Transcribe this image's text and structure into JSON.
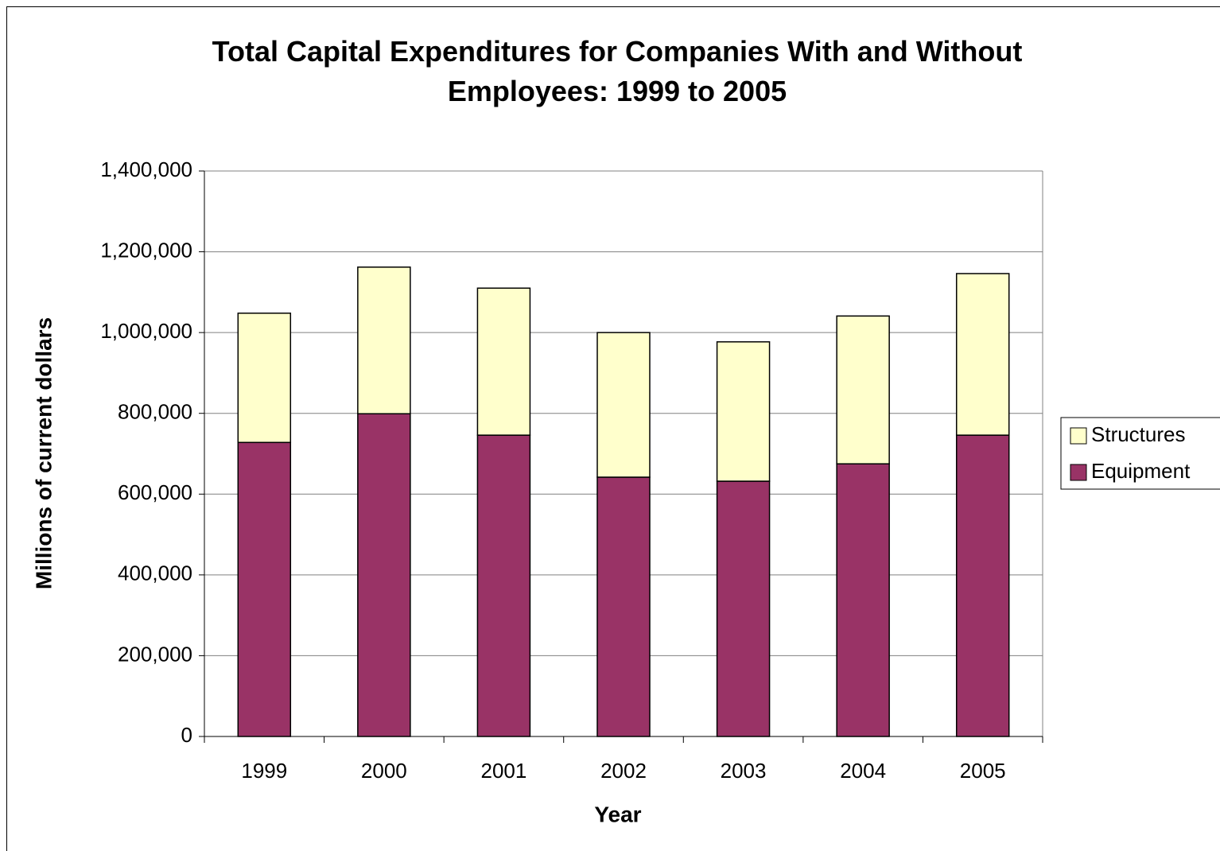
{
  "chart_data": {
    "type": "stacked_bar",
    "title": "Total Capital Expenditures for Companies With and Without Employees: 1999 to 2005",
    "x_label": "Year",
    "y_label": "Millions of current dollars",
    "categories": [
      "1999",
      "2000",
      "2001",
      "2002",
      "2003",
      "2004",
      "2005"
    ],
    "series": [
      {
        "name": "Equipment",
        "color": "#993366",
        "values": [
          728000,
          799000,
          746000,
          642000,
          632000,
          675000,
          746000
        ]
      },
      {
        "name": "Structures",
        "color": "#ffffcc",
        "values": [
          320000,
          363000,
          364000,
          358000,
          345000,
          366000,
          400000
        ]
      }
    ],
    "ylim": [
      0,
      1400000
    ],
    "yticks": [
      0,
      {
        "value": 200000,
        "label": "200,000"
      },
      {
        "value": 400000,
        "label": "400,000"
      },
      {
        "value": 600000,
        "label": "600,000"
      },
      {
        "value": 800000,
        "label": "800,000"
      },
      {
        "value": 1000000,
        "label": "1,000,000"
      },
      {
        "value": 1200000,
        "label": "1,200,000"
      },
      {
        "value": 1400000,
        "label": "1,400,000"
      }
    ],
    "grid": true,
    "legend": "right"
  }
}
